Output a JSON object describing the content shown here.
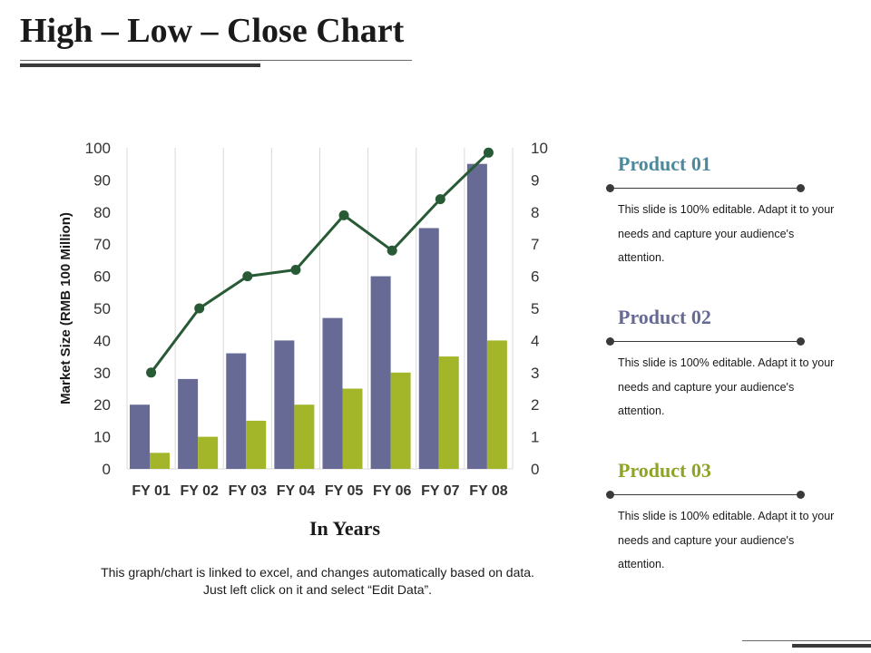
{
  "title": "High – Low – Close Chart",
  "chart_data": {
    "type": "bar",
    "categories": [
      "FY 01",
      "FY 02",
      "FY 03",
      "FY 04",
      "FY 05",
      "FY 06",
      "FY 07",
      "FY 08"
    ],
    "ylabel": "Market Size (RMB 100 Million)",
    "xlabel": "In Years",
    "ylim": [
      0,
      100
    ],
    "y_ticks": [
      0,
      10,
      20,
      30,
      40,
      50,
      60,
      70,
      80,
      90,
      100
    ],
    "y2lim": [
      0,
      10
    ],
    "y2_ticks": [
      0,
      1,
      2,
      3,
      4,
      5,
      6,
      7,
      8,
      9,
      10
    ],
    "grid": "vertical",
    "series": [
      {
        "type": "bar",
        "axis": "left",
        "color": "#666a94",
        "values": [
          20,
          28,
          36,
          40,
          47,
          60,
          75,
          95
        ]
      },
      {
        "type": "bar",
        "axis": "left",
        "color": "#a3b629",
        "values": [
          5,
          10,
          15,
          20,
          25,
          30,
          35,
          40
        ]
      },
      {
        "type": "line",
        "axis": "right",
        "color": "#275a35",
        "values": [
          3,
          5,
          6,
          6.2,
          7.9,
          6.8,
          8.4,
          9.85
        ]
      }
    ]
  },
  "note": {
    "line1": "This graph/chart is linked to excel, and changes automatically  based on data.",
    "line2": "Just left click on it and select “Edit Data”."
  },
  "products": [
    {
      "title": "Product 01",
      "color": "#4a8a9c",
      "text": "This slide is 100% editable.  Adapt it to your needs and capture your audience's attention."
    },
    {
      "title": "Product 02",
      "color": "#666a94",
      "text": "This slide is 100% editable.  Adapt it to your needs and capture your audience's attention."
    },
    {
      "title": "Product 03",
      "color": "#8fa324",
      "text": "This slide is 100% editable.  Adapt it to your needs and capture your audience's attention."
    }
  ]
}
